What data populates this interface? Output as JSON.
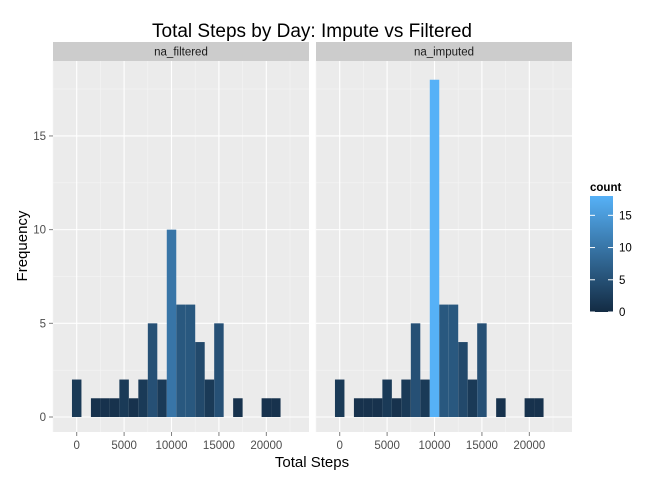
{
  "chart_data": {
    "type": "bar",
    "title": "Total Steps by Day: Impute vs Filtered",
    "xlabel": "Total Steps",
    "ylabel": "Frequency",
    "xlim": [
      -2500,
      24500
    ],
    "ylim": [
      -0.8,
      19
    ],
    "x_ticks": [
      0,
      5000,
      10000,
      15000,
      20000
    ],
    "x_minor_ticks": [
      -2500,
      2500,
      7500,
      12500,
      17500,
      22500
    ],
    "y_ticks": [
      0,
      5,
      10,
      15
    ],
    "y_minor_ticks": [
      2.5,
      7.5,
      12.5,
      17.5
    ],
    "bin_width": 1000,
    "bin_centers": [
      0,
      1000,
      2000,
      3000,
      4000,
      5000,
      6000,
      7000,
      8000,
      9000,
      10000,
      11000,
      12000,
      13000,
      14000,
      15000,
      16000,
      17000,
      18000,
      19000,
      20000,
      21000
    ],
    "panel_background": "#ebebeb",
    "grid_color": "#ffffff",
    "strip_background": "#cccccc",
    "panels": [
      {
        "label": "na_filtered",
        "values": [
          2,
          0,
          1,
          1,
          1,
          2,
          1,
          2,
          5,
          2,
          10,
          6,
          6,
          4,
          2,
          5,
          0,
          1,
          0,
          0,
          1,
          1
        ]
      },
      {
        "label": "na_imputed",
        "values": [
          2,
          0,
          1,
          1,
          1,
          2,
          1,
          2,
          5,
          2,
          18,
          6,
          6,
          4,
          2,
          5,
          0,
          1,
          0,
          0,
          1,
          1
        ]
      }
    ],
    "legend": {
      "title": "count",
      "position": "right",
      "labels": [
        "0",
        "5",
        "10",
        "15"
      ],
      "breaks": [
        0,
        5,
        10,
        15
      ],
      "range": [
        0,
        18
      ],
      "low_color": "#132b43",
      "high_color": "#56b1f7"
    }
  }
}
